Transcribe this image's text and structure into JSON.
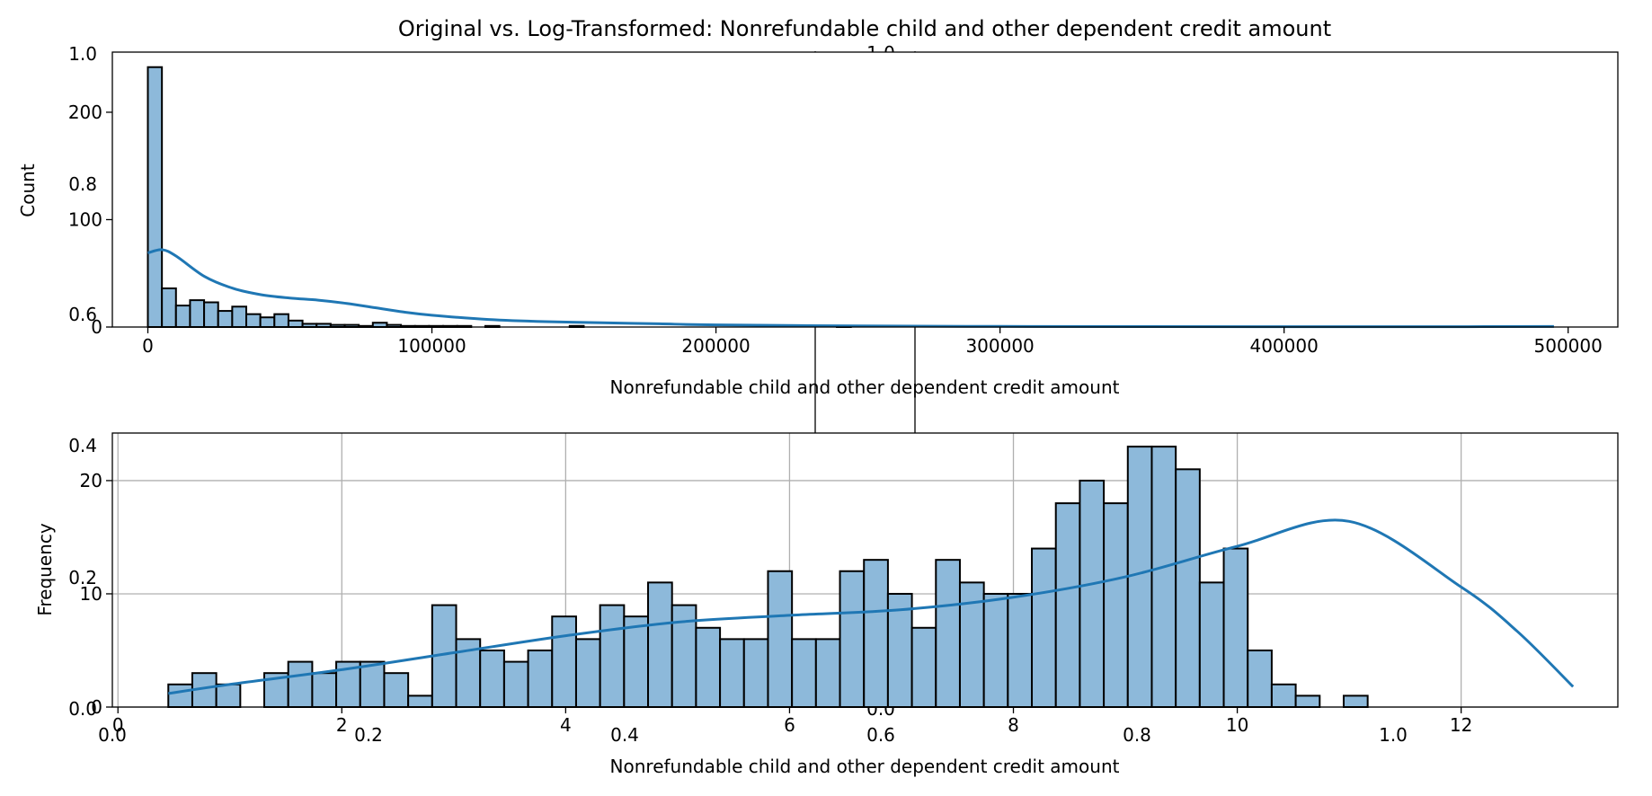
{
  "figure": {
    "title": "Original vs. Log-Transformed: Nonrefundable child and other dependent credit amount"
  },
  "colors": {
    "bar_fill": "#8db9da",
    "bar_edge": "#000000",
    "kde_line": "#1f77b4",
    "grid": "#b0b0b0"
  },
  "chart_data": [
    {
      "type": "bar",
      "subtype": "histogram_with_kde",
      "xlabel": "Nonrefundable child and other dependent credit amount",
      "ylabel": "Count",
      "xlim": [
        -12500,
        517500
      ],
      "ylim": [
        0,
        256
      ],
      "xticks": [
        0,
        100000,
        200000,
        300000,
        400000,
        500000
      ],
      "yticks": [
        0,
        100,
        200
      ],
      "bin_start": 0,
      "bin_width": 4950,
      "counts": [
        242,
        36,
        20,
        25,
        23,
        15,
        19,
        12,
        9,
        12,
        6,
        3,
        3,
        2,
        2,
        1,
        4,
        2,
        1,
        1,
        1,
        1,
        1,
        0,
        1,
        0,
        0,
        0,
        0,
        0,
        1,
        0,
        0,
        0,
        0,
        0,
        0,
        0,
        0,
        0,
        0,
        0,
        0,
        0,
        0,
        0,
        0,
        0,
        0,
        1
      ],
      "kde": {
        "x": [
          0,
          5000,
          10000,
          20000,
          30000,
          40000,
          50000,
          60000,
          70000,
          80000,
          90000,
          100000,
          120000,
          140000,
          160000,
          180000,
          200000,
          250000,
          300000,
          350000,
          400000,
          450000,
          495000
        ],
        "y": [
          69,
          72,
          66,
          47,
          36,
          30,
          27,
          25,
          22,
          18,
          14,
          11,
          7,
          5,
          4,
          3,
          2,
          1,
          0.6,
          0.4,
          0.3,
          0.3,
          0.5
        ]
      },
      "grid": false
    },
    {
      "type": "bar",
      "subtype": "histogram_with_kde",
      "xlabel": "Nonrefundable child and other dependent credit amount",
      "ylabel": "Frequency",
      "xlim": [
        -0.05,
        13.4
      ],
      "ylim": [
        0,
        24.2
      ],
      "xticks": [
        0,
        2,
        4,
        6,
        8,
        10,
        12
      ],
      "yticks": [
        0,
        10,
        20
      ],
      "bin_start": 0.45,
      "bin_width": 0.2143,
      "counts": [
        2,
        3,
        2,
        0,
        3,
        4,
        3,
        4,
        4,
        3,
        1,
        9,
        6,
        5,
        4,
        5,
        8,
        6,
        9,
        8,
        11,
        9,
        7,
        6,
        6,
        12,
        6,
        6,
        12,
        13,
        10,
        7,
        13,
        11,
        10,
        10,
        14,
        18,
        20,
        18,
        23,
        23,
        21,
        11,
        14,
        5,
        2,
        1,
        0,
        1
      ],
      "kde": {
        "x": [
          0.45,
          1.0,
          2.0,
          3.0,
          4.0,
          5.0,
          6.0,
          7.0,
          8.0,
          9.0,
          10.0,
          11.0,
          12.0,
          12.5,
          13.0
        ],
        "y": [
          1.2,
          2.0,
          3.3,
          4.8,
          6.3,
          7.5,
          8.1,
          8.6,
          9.7,
          11.5,
          14.2,
          16.4,
          10.6,
          6.7,
          1.8
        ]
      },
      "grid": true
    },
    {
      "type": "line",
      "note_kind": "empty_overlay_axes",
      "yticks": [
        "0.0",
        "0.2",
        "0.4",
        "0.6",
        "0.8",
        "1.0"
      ],
      "xticks": [
        "0.0",
        "0.2",
        "0.4",
        "0.6",
        "0.8",
        "1.0"
      ]
    },
    {
      "type": "line",
      "note_kind": "empty_center_axes",
      "yticks": [
        "0.0",
        "1.0"
      ]
    }
  ]
}
